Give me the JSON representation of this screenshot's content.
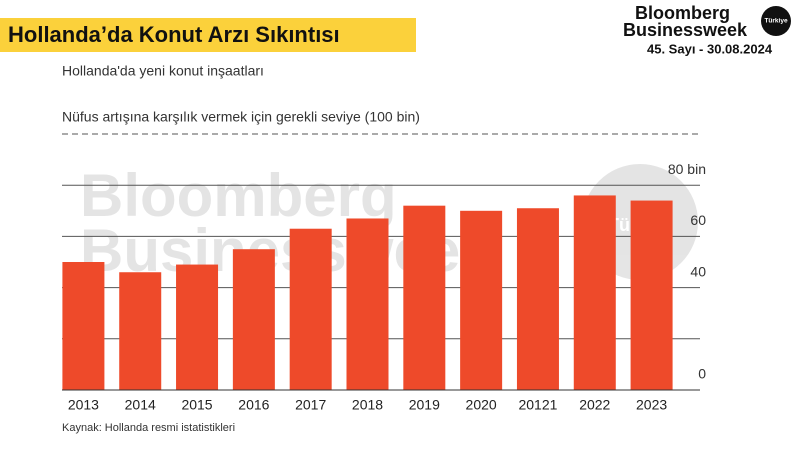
{
  "header": {
    "title": "Hollanda’da Konut Arzı Sıkıntısı",
    "brand_line1": "Bloomberg",
    "brand_line2": "Businessweek",
    "brand_badge": "Türkiye",
    "issue": "45. Sayı - 30.08.2024"
  },
  "chart_data": {
    "type": "bar",
    "subtitle": "Hollanda'da yeni konut inşaatları",
    "categories": [
      "2013",
      "2014",
      "2015",
      "2016",
      "2017",
      "2018",
      "2019",
      "2020",
      "20121",
      "2022",
      "2023"
    ],
    "values": [
      50,
      46,
      49,
      55,
      63,
      67,
      72,
      70,
      71,
      76,
      74
    ],
    "color": "#ee4a2a",
    "ylim": [
      0,
      100
    ],
    "yticks": [
      0,
      40,
      60,
      {
        "value": 80,
        "label": "80 bin"
      }
    ],
    "gridlines": [
      20,
      40,
      60,
      80
    ],
    "reference": {
      "value": 100,
      "label": "Nüfus artışına karşılık vermek için gerekli seviye (100 bin)"
    },
    "source": "Kaynak: Hollanda resmi istatistikleri"
  }
}
